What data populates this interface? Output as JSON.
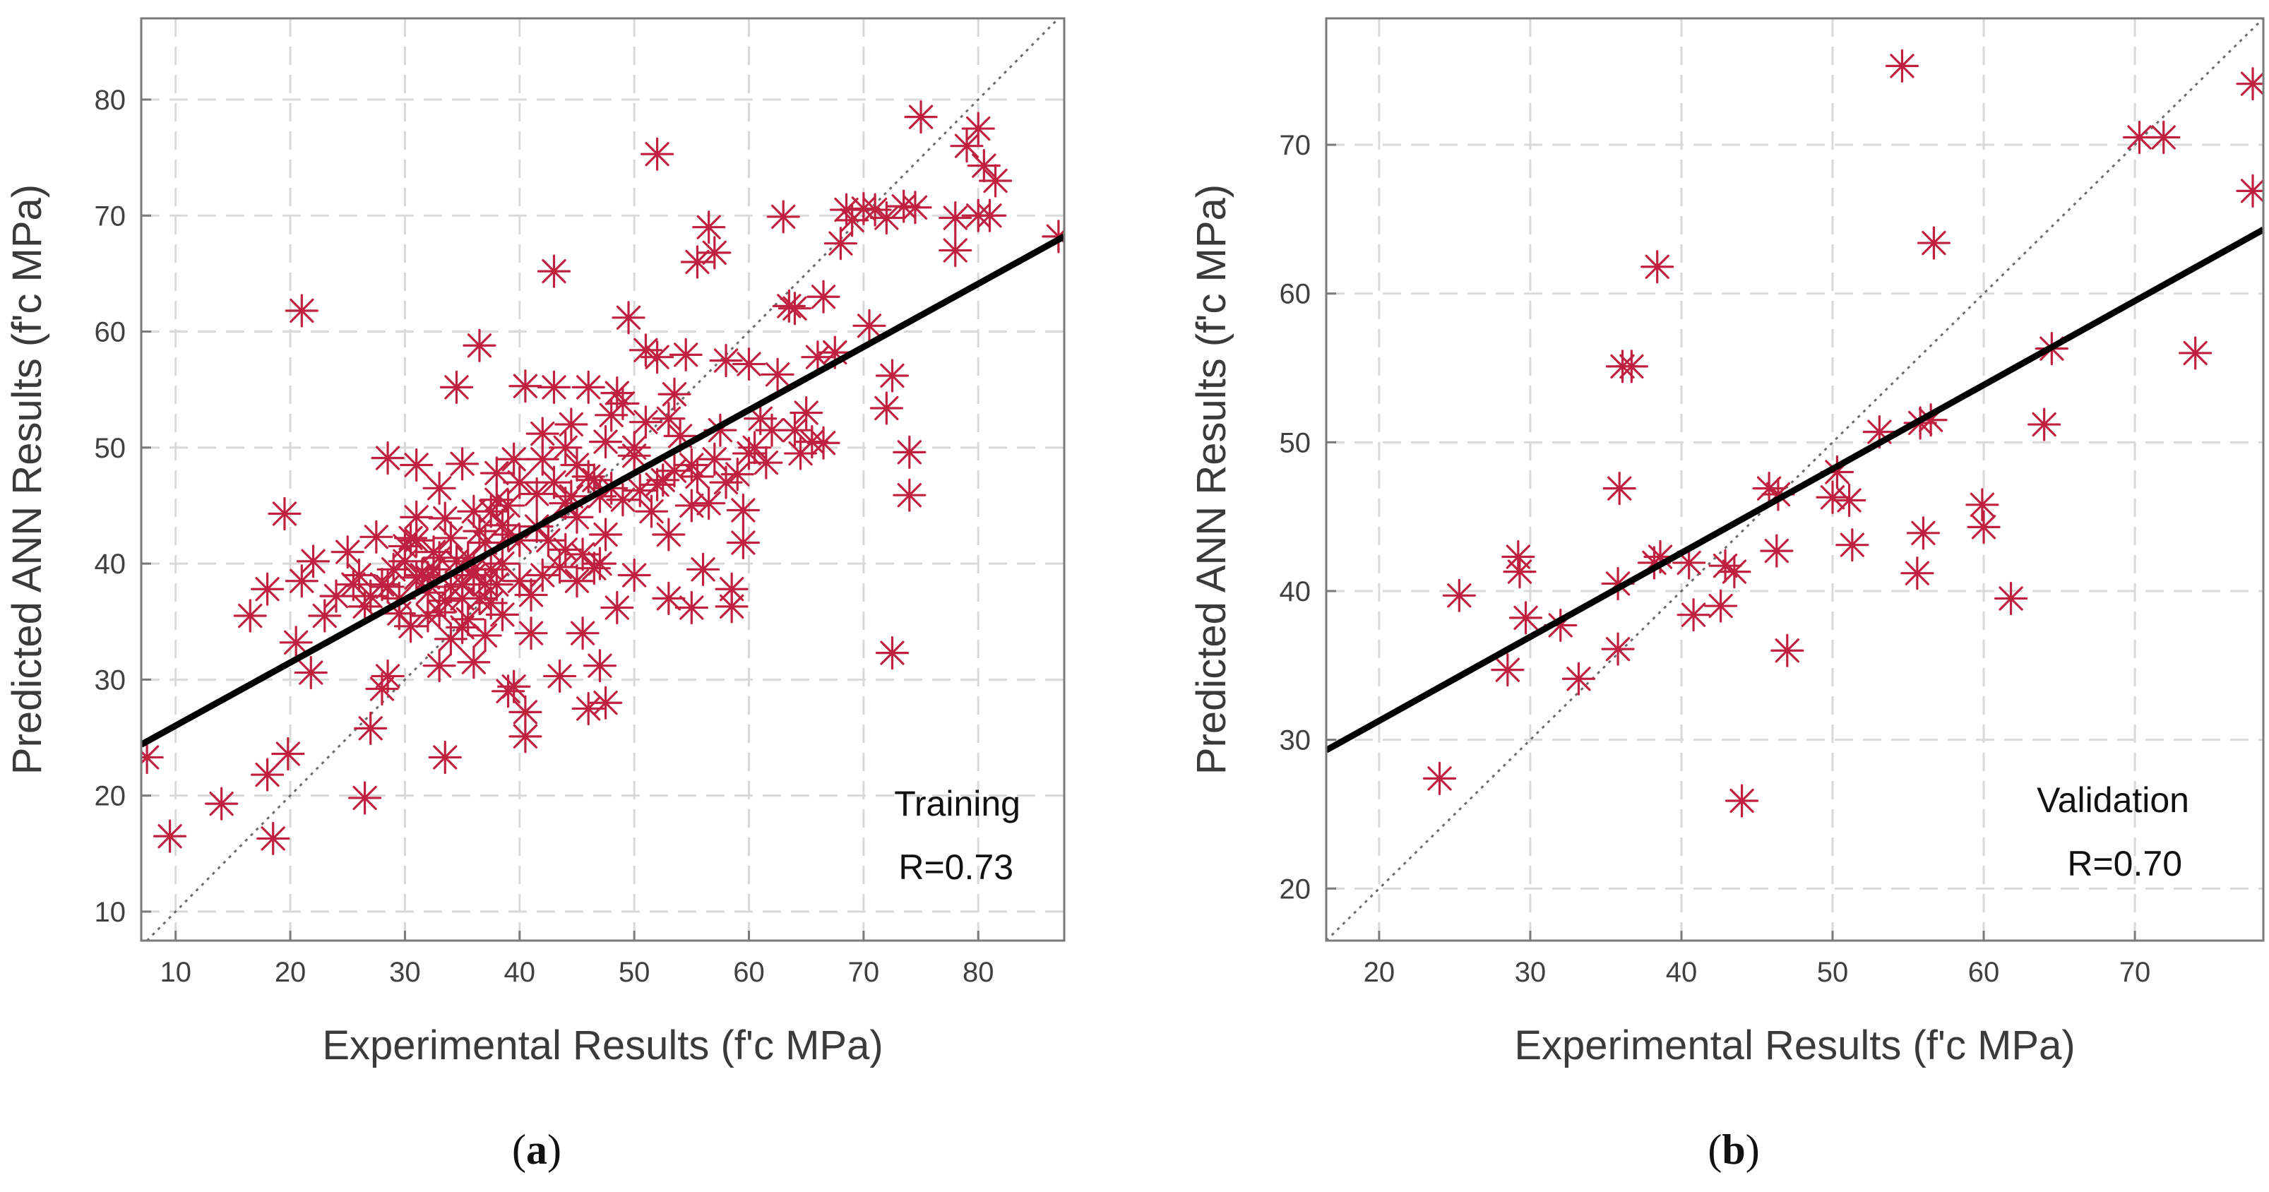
{
  "chart_data": [
    {
      "type": "scatter",
      "panel_label": "(a)",
      "panel_letter": "a",
      "xlabel": "Experimental Results (f'c MPa)",
      "ylabel": "Predicted ANN Results (f'c MPa)",
      "xlim": [
        7,
        87.5
      ],
      "ylim": [
        7.5,
        87
      ],
      "xticks": [
        10,
        20,
        30,
        40,
        50,
        60,
        70,
        80
      ],
      "yticks": [
        10,
        20,
        30,
        40,
        50,
        60,
        70,
        80
      ],
      "grid": true,
      "annotation": [
        "Training",
        "R=0.73"
      ],
      "fit_line": {
        "x": [
          7,
          87.5
        ],
        "y": [
          24.4,
          68.2
        ]
      },
      "identity_line": true,
      "marker_color": "#c0203f",
      "series": [
        {
          "marker": "asterisk",
          "points": [
            [
              7.5,
              23.3
            ],
            [
              9.5,
              16.5
            ],
            [
              14,
              19.3
            ],
            [
              18.5,
              16.3
            ],
            [
              18,
              21.8
            ],
            [
              19.8,
              23.6
            ],
            [
              26.5,
              19.8
            ],
            [
              27,
              25.8
            ],
            [
              33.5,
              23.3
            ],
            [
              40.5,
              25.1
            ],
            [
              28,
              29.2
            ],
            [
              28.5,
              30.3
            ],
            [
              16.5,
              35.5
            ],
            [
              18,
              37.8
            ],
            [
              19.5,
              44.3
            ],
            [
              20.5,
              33.2
            ],
            [
              21,
              38.5
            ],
            [
              22,
              40.2
            ],
            [
              21.8,
              30.6
            ],
            [
              21,
              61.8
            ],
            [
              23,
              35.5
            ],
            [
              24,
              37.2
            ],
            [
              25,
              41
            ],
            [
              26,
              39
            ],
            [
              26.5,
              36.3
            ],
            [
              27.5,
              42.3
            ],
            [
              28.5,
              38
            ],
            [
              28.5,
              49.1
            ],
            [
              29.5,
              35.7
            ],
            [
              30,
              40.2
            ],
            [
              30.5,
              34.6
            ],
            [
              31,
              48.5
            ],
            [
              31,
              42
            ],
            [
              32,
              37.5
            ],
            [
              32,
              38.8
            ],
            [
              32.5,
              39.5
            ],
            [
              33,
              46.5
            ],
            [
              33,
              31.2
            ],
            [
              33.5,
              36.8
            ],
            [
              34,
              33.5
            ],
            [
              34.5,
              55.2
            ],
            [
              34.5,
              40.2
            ],
            [
              35,
              38.2
            ],
            [
              35,
              48.6
            ],
            [
              35.5,
              35.2
            ],
            [
              36,
              31.5
            ],
            [
              36,
              39
            ],
            [
              36.5,
              58.8
            ],
            [
              37,
              41.8
            ],
            [
              37.5,
              36.6
            ],
            [
              37.5,
              44.5
            ],
            [
              38,
              47.8
            ],
            [
              38.5,
              35.6
            ],
            [
              39,
              29
            ],
            [
              39,
              42.5
            ],
            [
              39.5,
              49
            ],
            [
              39.5,
              29.4
            ],
            [
              40,
              38.5
            ],
            [
              40.5,
              27.2
            ],
            [
              40.5,
              55.3
            ],
            [
              41,
              34
            ],
            [
              41.5,
              43.2
            ],
            [
              42,
              51.2
            ],
            [
              42,
              39
            ],
            [
              43,
              65.2
            ],
            [
              43,
              55.2
            ],
            [
              43.5,
              30.3
            ],
            [
              44,
              45.2
            ],
            [
              44,
              41.2
            ],
            [
              44.5,
              52
            ],
            [
              45,
              48.5
            ],
            [
              45,
              38.5
            ],
            [
              45.5,
              34
            ],
            [
              46,
              55.2
            ],
            [
              46,
              27.5
            ],
            [
              46.5,
              39.6
            ],
            [
              47,
              45.8
            ],
            [
              47,
              31.2
            ],
            [
              47.5,
              28
            ],
            [
              47.5,
              42.5
            ],
            [
              48,
              52.8
            ],
            [
              48.5,
              36.2
            ],
            [
              48.5,
              54.7
            ],
            [
              49,
              45.5
            ],
            [
              49.5,
              61.2
            ],
            [
              50,
              39
            ],
            [
              50,
              49.3
            ],
            [
              51,
              58.4
            ],
            [
              51.5,
              44.5
            ],
            [
              52,
              75.3
            ],
            [
              52,
              57.8
            ],
            [
              52.5,
              47.2
            ],
            [
              53,
              37
            ],
            [
              53,
              42.5
            ],
            [
              53.5,
              54.6
            ],
            [
              54,
              51
            ],
            [
              54.5,
              58
            ],
            [
              55,
              45
            ],
            [
              55,
              36.2
            ],
            [
              55.5,
              66
            ],
            [
              55.5,
              47.5
            ],
            [
              56,
              39.5
            ],
            [
              56.5,
              69
            ],
            [
              56.5,
              45.2
            ],
            [
              57,
              66.8
            ],
            [
              57.5,
              51.5
            ],
            [
              58,
              57.5
            ],
            [
              58.5,
              37.8
            ],
            [
              58.5,
              36.3
            ],
            [
              59,
              47.7
            ],
            [
              59.5,
              41.8
            ],
            [
              59.5,
              44.6
            ],
            [
              60,
              57.2
            ],
            [
              60.5,
              50
            ],
            [
              61,
              52.5
            ],
            [
              61.5,
              48.7
            ],
            [
              62,
              51.5
            ],
            [
              62.5,
              56.3
            ],
            [
              63,
              69.9
            ],
            [
              63.5,
              62.2
            ],
            [
              64,
              62
            ],
            [
              64,
              51.5
            ],
            [
              64.5,
              49.5
            ],
            [
              65,
              53
            ],
            [
              65.5,
              50.5
            ],
            [
              66,
              57.8
            ],
            [
              66.5,
              63
            ],
            [
              66.5,
              50.4
            ],
            [
              67.5,
              58.2
            ],
            [
              68,
              67.6
            ],
            [
              68.5,
              70.5
            ],
            [
              69,
              69.6
            ],
            [
              70,
              70.6
            ],
            [
              70.5,
              60.5
            ],
            [
              71,
              70.5
            ],
            [
              72,
              69.8
            ],
            [
              72.5,
              56.2
            ],
            [
              72,
              53.4
            ],
            [
              72.5,
              32.3
            ],
            [
              73.5,
              70.8
            ],
            [
              74,
              49.6
            ],
            [
              74,
              45.9
            ],
            [
              74.5,
              70.7
            ],
            [
              75,
              78.5
            ],
            [
              78,
              69.8
            ],
            [
              78,
              67
            ],
            [
              79,
              76
            ],
            [
              80,
              77.5
            ],
            [
              80.5,
              74.3
            ],
            [
              80,
              70
            ],
            [
              81,
              70
            ],
            [
              81.5,
              73
            ],
            [
              87,
              68.2
            ],
            [
              30,
              41.5
            ],
            [
              31.5,
              39
            ],
            [
              33,
              40.5
            ],
            [
              34,
              38
            ],
            [
              35.5,
              40.5
            ],
            [
              36.5,
              37
            ],
            [
              37.5,
              39.5
            ],
            [
              38.5,
              40
            ],
            [
              40,
              42
            ],
            [
              41.5,
              46
            ],
            [
              43,
              47
            ],
            [
              44.5,
              45.8
            ],
            [
              46,
              47.5
            ],
            [
              48,
              46.5
            ],
            [
              50.5,
              46.3
            ],
            [
              52,
              46.8
            ],
            [
              53.5,
              48
            ],
            [
              55,
              48.5
            ],
            [
              57,
              49
            ],
            [
              58,
              47
            ],
            [
              60,
              49.5
            ],
            [
              39,
              45
            ],
            [
              36,
              44.5
            ],
            [
              42.5,
              42
            ],
            [
              34,
              42.2
            ],
            [
              31,
              44
            ],
            [
              29,
              39.5
            ],
            [
              27,
              37.2
            ],
            [
              25.5,
              38.2
            ],
            [
              32,
              35.5
            ],
            [
              35,
              34.5
            ],
            [
              37,
              33.8
            ],
            [
              38,
              38.2
            ],
            [
              41,
              37.3
            ],
            [
              43.5,
              39.7
            ],
            [
              45.5,
              40.8
            ],
            [
              47,
              40
            ],
            [
              45,
              44
            ],
            [
              44,
              50
            ],
            [
              42,
              49
            ],
            [
              40,
              47
            ],
            [
              38,
              45.5
            ],
            [
              50,
              50
            ],
            [
              51,
              52.2
            ],
            [
              53,
              52.5
            ],
            [
              49,
              53.8
            ],
            [
              47.5,
              50.5
            ],
            [
              46.5,
              47.2
            ],
            [
              38.5,
              43.3
            ],
            [
              36.5,
              42.8
            ],
            [
              33.5,
              43.9
            ],
            [
              32.5,
              41
            ],
            [
              30.5,
              42.2
            ],
            [
              28,
              38.2
            ],
            [
              29.5,
              37
            ],
            [
              31,
              38.8
            ],
            [
              33,
              35.8
            ],
            [
              35,
              37
            ],
            [
              36,
              39.5
            ],
            [
              37,
              38.2
            ]
          ]
        }
      ]
    },
    {
      "type": "scatter",
      "panel_label": "(b)",
      "panel_letter": "b",
      "xlabel": "Experimental Results (f'c MPa)",
      "ylabel": "Predicted ANN Results (f'c MPa)",
      "xlim": [
        16.5,
        78.5
      ],
      "ylim": [
        16.5,
        78.5
      ],
      "xticks": [
        20,
        30,
        40,
        50,
        60,
        70
      ],
      "yticks": [
        20,
        30,
        40,
        50,
        60,
        70
      ],
      "grid": true,
      "annotation": [
        "Validation",
        "R=0.70"
      ],
      "fit_line": {
        "x": [
          16.5,
          78.5
        ],
        "y": [
          29.3,
          64.3
        ]
      },
      "identity_line": true,
      "marker_color": "#c0203f",
      "series": [
        {
          "marker": "asterisk",
          "points": [
            [
              24,
              27.4
            ],
            [
              25.3,
              39.7
            ],
            [
              28.5,
              34.7
            ],
            [
              29.2,
              42.3
            ],
            [
              29.3,
              41.3
            ],
            [
              29.7,
              38.2
            ],
            [
              32,
              37.7
            ],
            [
              33.2,
              34.1
            ],
            [
              35.8,
              36.1
            ],
            [
              35.9,
              46.9
            ],
            [
              36.1,
              55.1
            ],
            [
              36.7,
              55.1
            ],
            [
              35.8,
              40.5
            ],
            [
              38.2,
              41.9
            ],
            [
              38.4,
              61.8
            ],
            [
              38.6,
              42.3
            ],
            [
              40.5,
              41.9
            ],
            [
              40.8,
              38.4
            ],
            [
              42.6,
              39
            ],
            [
              42.9,
              41.7
            ],
            [
              43.5,
              41.3
            ],
            [
              44,
              25.9
            ],
            [
              45.8,
              46.9
            ],
            [
              46.3,
              42.7
            ],
            [
              46.4,
              46.5
            ],
            [
              47,
              36
            ],
            [
              50,
              46.3
            ],
            [
              50.3,
              48
            ],
            [
              51.1,
              46.1
            ],
            [
              51.3,
              43.1
            ],
            [
              53.1,
              50.7
            ],
            [
              54.6,
              75.3
            ],
            [
              55.6,
              41.2
            ],
            [
              55.8,
              51.3
            ],
            [
              56,
              43.9
            ],
            [
              56.5,
              51.5
            ],
            [
              56.7,
              63.4
            ],
            [
              59.9,
              45.8
            ],
            [
              60,
              44.3
            ],
            [
              61.8,
              39.5
            ],
            [
              64,
              51.2
            ],
            [
              64.5,
              56.3
            ],
            [
              70.3,
              70.5
            ],
            [
              71.9,
              70.5
            ],
            [
              74,
              56
            ],
            [
              77.8,
              74.1
            ],
            [
              77.8,
              66.9
            ]
          ]
        }
      ]
    }
  ]
}
